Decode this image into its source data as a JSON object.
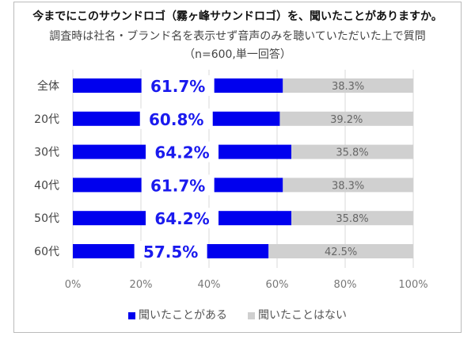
{
  "chart_data": {
    "type": "bar",
    "stacked": true,
    "orientation": "horizontal",
    "title": "今までにこのサウンドロゴ（霧ヶ峰サウンドロゴ）を、聞いたことがありますか。",
    "subtitle": "調査時は社名・ブランド名を表示せず音声のみを聴いていただいた上で質問",
    "note": "（n=600,単一回答）",
    "categories": [
      "全体",
      "20代",
      "30代",
      "40代",
      "50代",
      "60代"
    ],
    "series": [
      {
        "name": "聞いたことがある",
        "color": "#0000ee",
        "values": [
          61.7,
          60.8,
          64.2,
          61.7,
          64.2,
          57.5
        ]
      },
      {
        "name": "聞いたことはない",
        "color": "#d0d0d0",
        "values": [
          38.3,
          39.2,
          35.8,
          38.3,
          35.8,
          42.5
        ]
      }
    ],
    "xlim": [
      0,
      100
    ],
    "xticks": [
      "0%",
      "20%",
      "40%",
      "60%",
      "80%",
      "100%"
    ],
    "grid": "vertical",
    "legend": "bottom"
  }
}
